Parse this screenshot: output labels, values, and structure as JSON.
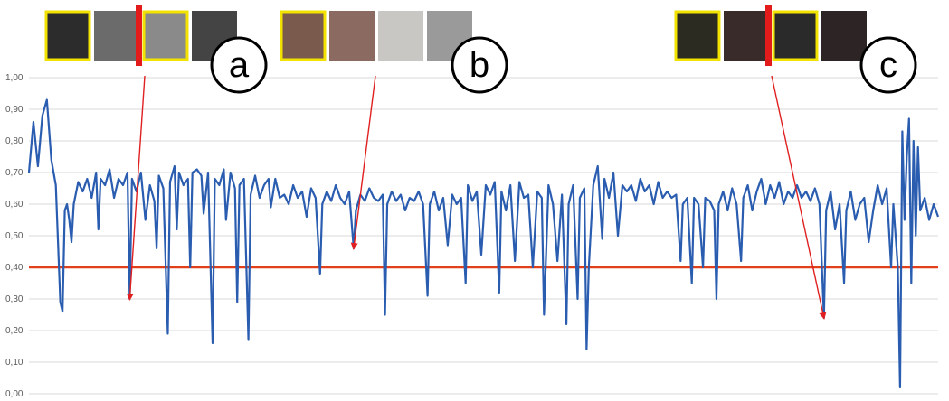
{
  "chart_data": {
    "type": "line",
    "title": "",
    "xlabel": "",
    "ylabel": "",
    "ylim": [
      0,
      1
    ],
    "yticks": [
      "0,00",
      "0,10",
      "0,20",
      "0,30",
      "0,40",
      "0,50",
      "0,60",
      "0,70",
      "0,80",
      "0,90",
      "1,00"
    ],
    "grid": true,
    "legend": "none",
    "series": [
      {
        "color": "#2a5db0",
        "description_points": [
          [
            0,
            0.7
          ],
          [
            2,
            0.86
          ],
          [
            4,
            0.72
          ],
          [
            6,
            0.88
          ],
          [
            8,
            0.93
          ],
          [
            10,
            0.74
          ],
          [
            12,
            0.66
          ],
          [
            14,
            0.29
          ],
          [
            15,
            0.26
          ],
          [
            16,
            0.58
          ],
          [
            17,
            0.6
          ],
          [
            18,
            0.55
          ],
          [
            19,
            0.48
          ],
          [
            20,
            0.6
          ],
          [
            22,
            0.67
          ],
          [
            24,
            0.64
          ],
          [
            26,
            0.68
          ],
          [
            28,
            0.62
          ],
          [
            30,
            0.7
          ],
          [
            31,
            0.52
          ],
          [
            32,
            0.68
          ],
          [
            34,
            0.66
          ],
          [
            36,
            0.71
          ],
          [
            38,
            0.62
          ],
          [
            40,
            0.68
          ],
          [
            42,
            0.66
          ],
          [
            44,
            0.7
          ],
          [
            45,
            0.3
          ],
          [
            46,
            0.68
          ],
          [
            48,
            0.64
          ],
          [
            50,
            0.7
          ],
          [
            52,
            0.55
          ],
          [
            54,
            0.66
          ],
          [
            56,
            0.61
          ],
          [
            57,
            0.46
          ],
          [
            58,
            0.69
          ],
          [
            60,
            0.65
          ],
          [
            62,
            0.19
          ],
          [
            63,
            0.67
          ],
          [
            65,
            0.72
          ],
          [
            66,
            0.52
          ],
          [
            67,
            0.7
          ],
          [
            69,
            0.66
          ],
          [
            71,
            0.68
          ],
          [
            72,
            0.4
          ],
          [
            73,
            0.7
          ],
          [
            75,
            0.71
          ],
          [
            77,
            0.69
          ],
          [
            78,
            0.57
          ],
          [
            80,
            0.7
          ],
          [
            82,
            0.16
          ],
          [
            83,
            0.68
          ],
          [
            85,
            0.66
          ],
          [
            87,
            0.71
          ],
          [
            88,
            0.55
          ],
          [
            90,
            0.7
          ],
          [
            92,
            0.65
          ],
          [
            93,
            0.29
          ],
          [
            94,
            0.66
          ],
          [
            96,
            0.68
          ],
          [
            98,
            0.17
          ],
          [
            99,
            0.63
          ],
          [
            101,
            0.69
          ],
          [
            103,
            0.62
          ],
          [
            105,
            0.66
          ],
          [
            107,
            0.68
          ],
          [
            108,
            0.59
          ],
          [
            110,
            0.68
          ],
          [
            112,
            0.62
          ],
          [
            114,
            0.63
          ],
          [
            116,
            0.6
          ],
          [
            118,
            0.66
          ],
          [
            120,
            0.62
          ],
          [
            122,
            0.64
          ],
          [
            124,
            0.56
          ],
          [
            126,
            0.65
          ],
          [
            128,
            0.62
          ],
          [
            130,
            0.38
          ],
          [
            131,
            0.6
          ],
          [
            133,
            0.64
          ],
          [
            135,
            0.61
          ],
          [
            137,
            0.66
          ],
          [
            139,
            0.62
          ],
          [
            141,
            0.6
          ],
          [
            143,
            0.64
          ],
          [
            145,
            0.46
          ],
          [
            146,
            0.58
          ],
          [
            148,
            0.63
          ],
          [
            150,
            0.61
          ],
          [
            152,
            0.65
          ],
          [
            154,
            0.62
          ],
          [
            156,
            0.61
          ],
          [
            158,
            0.63
          ],
          [
            159,
            0.25
          ],
          [
            160,
            0.6
          ],
          [
            162,
            0.64
          ],
          [
            164,
            0.61
          ],
          [
            166,
            0.63
          ],
          [
            168,
            0.58
          ],
          [
            170,
            0.62
          ],
          [
            172,
            0.61
          ],
          [
            174,
            0.64
          ],
          [
            176,
            0.6
          ],
          [
            178,
            0.31
          ],
          [
            179,
            0.6
          ],
          [
            181,
            0.64
          ],
          [
            183,
            0.58
          ],
          [
            185,
            0.62
          ],
          [
            187,
            0.47
          ],
          [
            189,
            0.63
          ],
          [
            191,
            0.6
          ],
          [
            193,
            0.62
          ],
          [
            195,
            0.35
          ],
          [
            196,
            0.66
          ],
          [
            198,
            0.61
          ],
          [
            200,
            0.64
          ],
          [
            202,
            0.44
          ],
          [
            204,
            0.66
          ],
          [
            206,
            0.63
          ],
          [
            208,
            0.67
          ],
          [
            210,
            0.32
          ],
          [
            211,
            0.64
          ],
          [
            213,
            0.58
          ],
          [
            215,
            0.66
          ],
          [
            217,
            0.42
          ],
          [
            219,
            0.67
          ],
          [
            221,
            0.62
          ],
          [
            223,
            0.63
          ],
          [
            225,
            0.4
          ],
          [
            227,
            0.64
          ],
          [
            229,
            0.62
          ],
          [
            230,
            0.25
          ],
          [
            232,
            0.66
          ],
          [
            234,
            0.6
          ],
          [
            236,
            0.42
          ],
          [
            238,
            0.63
          ],
          [
            240,
            0.22
          ],
          [
            241,
            0.6
          ],
          [
            243,
            0.66
          ],
          [
            245,
            0.3
          ],
          [
            246,
            0.62
          ],
          [
            248,
            0.65
          ],
          [
            249,
            0.14
          ],
          [
            250,
            0.4
          ],
          [
            252,
            0.66
          ],
          [
            254,
            0.72
          ],
          [
            256,
            0.49
          ],
          [
            257,
            0.68
          ],
          [
            259,
            0.62
          ],
          [
            261,
            0.7
          ],
          [
            263,
            0.5
          ],
          [
            265,
            0.66
          ],
          [
            267,
            0.64
          ],
          [
            269,
            0.66
          ],
          [
            271,
            0.61
          ],
          [
            273,
            0.68
          ],
          [
            275,
            0.64
          ],
          [
            277,
            0.66
          ],
          [
            279,
            0.6
          ],
          [
            281,
            0.67
          ],
          [
            283,
            0.62
          ],
          [
            285,
            0.64
          ],
          [
            287,
            0.62
          ],
          [
            289,
            0.63
          ],
          [
            291,
            0.42
          ],
          [
            292,
            0.6
          ],
          [
            294,
            0.62
          ],
          [
            296,
            0.35
          ],
          [
            297,
            0.62
          ],
          [
            299,
            0.6
          ],
          [
            301,
            0.4
          ],
          [
            302,
            0.62
          ],
          [
            304,
            0.61
          ],
          [
            306,
            0.58
          ],
          [
            307,
            0.3
          ],
          [
            308,
            0.6
          ],
          [
            310,
            0.64
          ],
          [
            312,
            0.58
          ],
          [
            314,
            0.65
          ],
          [
            316,
            0.6
          ],
          [
            318,
            0.42
          ],
          [
            319,
            0.62
          ],
          [
            321,
            0.66
          ],
          [
            323,
            0.58
          ],
          [
            325,
            0.64
          ],
          [
            327,
            0.68
          ],
          [
            329,
            0.6
          ],
          [
            331,
            0.66
          ],
          [
            333,
            0.62
          ],
          [
            335,
            0.67
          ],
          [
            337,
            0.6
          ],
          [
            339,
            0.64
          ],
          [
            341,
            0.62
          ],
          [
            343,
            0.66
          ],
          [
            345,
            0.62
          ],
          [
            347,
            0.64
          ],
          [
            349,
            0.61
          ],
          [
            351,
            0.65
          ],
          [
            353,
            0.6
          ],
          [
            355,
            0.24
          ],
          [
            356,
            0.58
          ],
          [
            358,
            0.64
          ],
          [
            360,
            0.52
          ],
          [
            362,
            0.6
          ],
          [
            364,
            0.35
          ],
          [
            365,
            0.58
          ],
          [
            367,
            0.64
          ],
          [
            369,
            0.55
          ],
          [
            371,
            0.6
          ],
          [
            373,
            0.62
          ],
          [
            375,
            0.48
          ],
          [
            377,
            0.58
          ],
          [
            379,
            0.66
          ],
          [
            381,
            0.6
          ],
          [
            383,
            0.65
          ],
          [
            385,
            0.4
          ],
          [
            386,
            0.6
          ],
          [
            388,
            0.4
          ],
          [
            389,
            0.02
          ],
          [
            390,
            0.83
          ],
          [
            391,
            0.55
          ],
          [
            392,
            0.75
          ],
          [
            393,
            0.87
          ],
          [
            394,
            0.35
          ],
          [
            395,
            0.8
          ],
          [
            396,
            0.5
          ],
          [
            397,
            0.78
          ],
          [
            398,
            0.58
          ],
          [
            400,
            0.62
          ],
          [
            402,
            0.55
          ],
          [
            404,
            0.6
          ],
          [
            406,
            0.56
          ]
        ]
      }
    ],
    "threshold": {
      "value": 0.4,
      "color": "#e0401a"
    },
    "annotations": [
      {
        "label": "a",
        "target": [
          45,
          0.3
        ],
        "marker": "red-bar",
        "frames": 4,
        "highlighted_frames": [
          0,
          2
        ]
      },
      {
        "label": "b",
        "target": [
          145,
          0.46
        ],
        "marker": "none",
        "frames": 4,
        "highlighted_frames": [
          0
        ]
      },
      {
        "label": "c",
        "target": [
          355,
          0.24
        ],
        "marker": "red-bar",
        "frames": 4,
        "highlighted_frames": [
          0,
          2
        ]
      }
    ],
    "annotation_arrow_color": "#e02020",
    "highlight_color": "#f2e200"
  }
}
